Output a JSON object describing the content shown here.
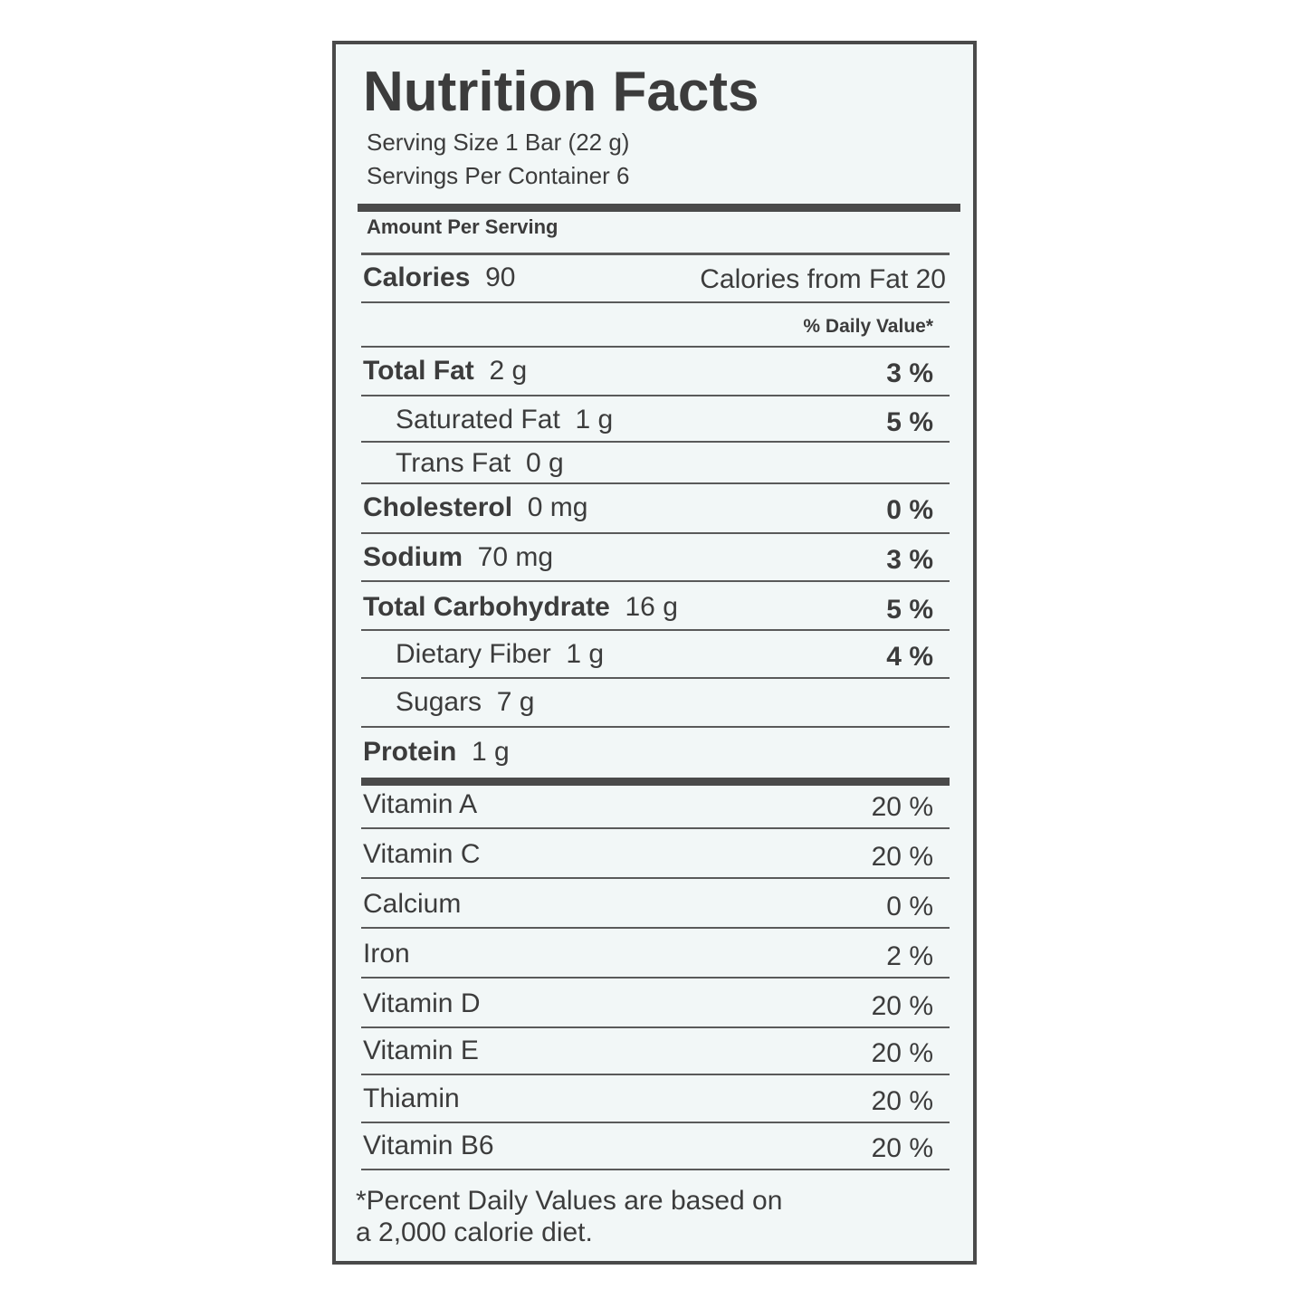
{
  "title": "Nutrition Facts",
  "serving_size": "Serving Size 1 Bar (22 g)",
  "servings_per_container": "Servings Per Container 6",
  "amount_per_serving": "Amount Per Serving",
  "calories": {
    "label": "Calories",
    "value": "90",
    "from_fat": "Calories from Fat 20"
  },
  "daily_value_header": "% Daily Value*",
  "nutrients": [
    {
      "name": "Total Fat",
      "amount": "2 g",
      "dv": "3 %"
    },
    {
      "name": "Saturated Fat",
      "amount": "1 g",
      "dv": "5 %"
    },
    {
      "name": "Trans Fat",
      "amount": "0 g"
    },
    {
      "name": "Cholesterol",
      "amount": "0 mg",
      "dv": "0 %"
    },
    {
      "name": "Sodium",
      "amount": "70 mg",
      "dv": "3 %"
    },
    {
      "name": "Total Carbohydrate",
      "amount": "16 g",
      "dv": "5 %"
    },
    {
      "name": "Dietary Fiber",
      "amount": "1 g",
      "dv": "4 %"
    },
    {
      "name": "Sugars",
      "amount": "7 g"
    },
    {
      "name": "Protein",
      "amount": "1 g"
    }
  ],
  "vitamins": [
    {
      "name": "Vitamin A",
      "dv": "20 %"
    },
    {
      "name": "Vitamin C",
      "dv": "20 %"
    },
    {
      "name": "Calcium",
      "dv": "0 %"
    },
    {
      "name": "Iron",
      "dv": "2 %"
    },
    {
      "name": "Vitamin D",
      "dv": "20 %"
    },
    {
      "name": "Vitamin E",
      "dv": "20 %"
    },
    {
      "name": "Thiamin",
      "dv": "20 %"
    },
    {
      "name": "Vitamin B6",
      "dv": "20 %"
    }
  ],
  "footnote": [
    "*Percent Daily Values are based on",
    "a 2,000 calorie diet."
  ]
}
